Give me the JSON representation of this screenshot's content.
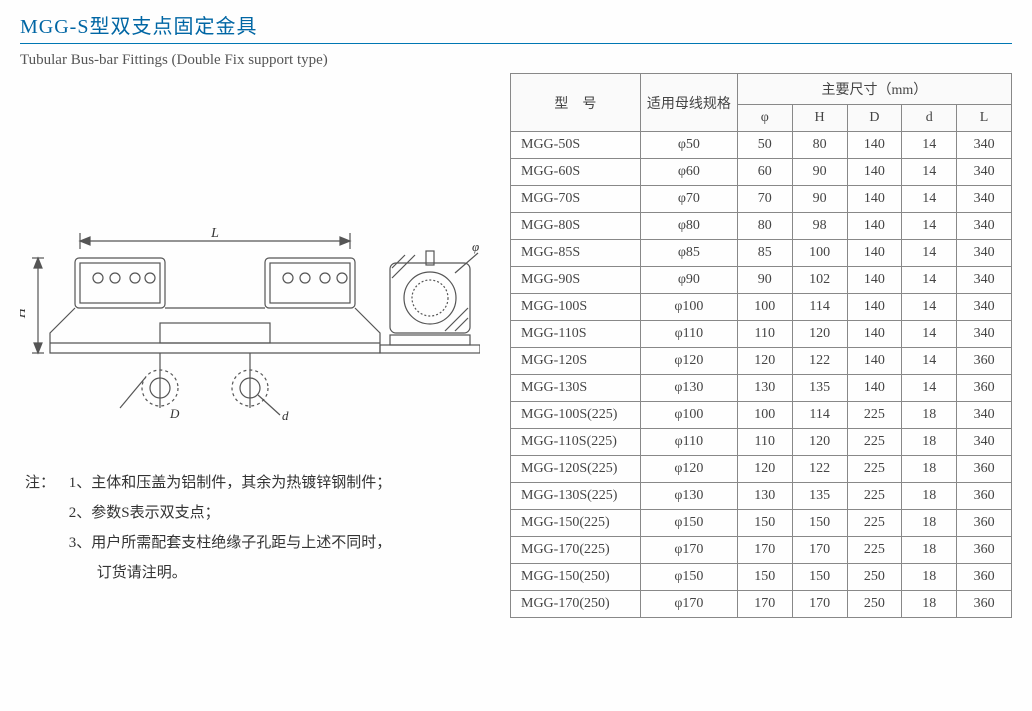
{
  "header": {
    "title_cn": "MGG-S型双支点固定金具",
    "title_en": "Tubular Bus-bar Fittings (Double Fix support type)"
  },
  "diagram": {
    "label_L": "L",
    "label_H": "H",
    "label_D": "D",
    "label_d": "d",
    "label_phi": "φ"
  },
  "notes": {
    "prefix": "注：",
    "items": [
      "1、主体和压盖为铝制件，其余为热镀锌钢制件；",
      "2、参数S表示双支点；",
      "3、用户所需配套支柱绝缘子孔距与上述不同时，"
    ],
    "continuation": "订货请注明。"
  },
  "table": {
    "headers": {
      "model": "型　号",
      "spec": "适用母线规格",
      "dim_group": "主要尺寸（mm）",
      "phi": "φ",
      "H": "H",
      "D": "D",
      "d": "d",
      "L": "L"
    },
    "rows": [
      {
        "model": "MGG-50S",
        "spec": "φ50",
        "phi": "50",
        "H": "80",
        "D": "140",
        "d": "14",
        "L": "340"
      },
      {
        "model": "MGG-60S",
        "spec": "φ60",
        "phi": "60",
        "H": "90",
        "D": "140",
        "d": "14",
        "L": "340"
      },
      {
        "model": "MGG-70S",
        "spec": "φ70",
        "phi": "70",
        "H": "90",
        "D": "140",
        "d": "14",
        "L": "340"
      },
      {
        "model": "MGG-80S",
        "spec": "φ80",
        "phi": "80",
        "H": "98",
        "D": "140",
        "d": "14",
        "L": "340"
      },
      {
        "model": "MGG-85S",
        "spec": "φ85",
        "phi": "85",
        "H": "100",
        "D": "140",
        "d": "14",
        "L": "340"
      },
      {
        "model": "MGG-90S",
        "spec": "φ90",
        "phi": "90",
        "H": "102",
        "D": "140",
        "d": "14",
        "L": "340"
      },
      {
        "model": "MGG-100S",
        "spec": "φ100",
        "phi": "100",
        "H": "114",
        "D": "140",
        "d": "14",
        "L": "340"
      },
      {
        "model": "MGG-110S",
        "spec": "φ110",
        "phi": "110",
        "H": "120",
        "D": "140",
        "d": "14",
        "L": "340"
      },
      {
        "model": "MGG-120S",
        "spec": "φ120",
        "phi": "120",
        "H": "122",
        "D": "140",
        "d": "14",
        "L": "360"
      },
      {
        "model": "MGG-130S",
        "spec": "φ130",
        "phi": "130",
        "H": "135",
        "D": "140",
        "d": "14",
        "L": "360"
      },
      {
        "model": "MGG-100S(225)",
        "spec": "φ100",
        "phi": "100",
        "H": "114",
        "D": "225",
        "d": "18",
        "L": "340"
      },
      {
        "model": "MGG-110S(225)",
        "spec": "φ110",
        "phi": "110",
        "H": "120",
        "D": "225",
        "d": "18",
        "L": "340"
      },
      {
        "model": "MGG-120S(225)",
        "spec": "φ120",
        "phi": "120",
        "H": "122",
        "D": "225",
        "d": "18",
        "L": "360"
      },
      {
        "model": "MGG-130S(225)",
        "spec": "φ130",
        "phi": "130",
        "H": "135",
        "D": "225",
        "d": "18",
        "L": "360"
      },
      {
        "model": "MGG-150(225)",
        "spec": "φ150",
        "phi": "150",
        "H": "150",
        "D": "225",
        "d": "18",
        "L": "360"
      },
      {
        "model": "MGG-170(225)",
        "spec": "φ170",
        "phi": "170",
        "H": "170",
        "D": "225",
        "d": "18",
        "L": "360"
      },
      {
        "model": "MGG-150(250)",
        "spec": "φ150",
        "phi": "150",
        "H": "150",
        "D": "250",
        "d": "18",
        "L": "360"
      },
      {
        "model": "MGG-170(250)",
        "spec": "φ170",
        "phi": "170",
        "H": "170",
        "D": "250",
        "d": "18",
        "L": "360"
      }
    ]
  }
}
